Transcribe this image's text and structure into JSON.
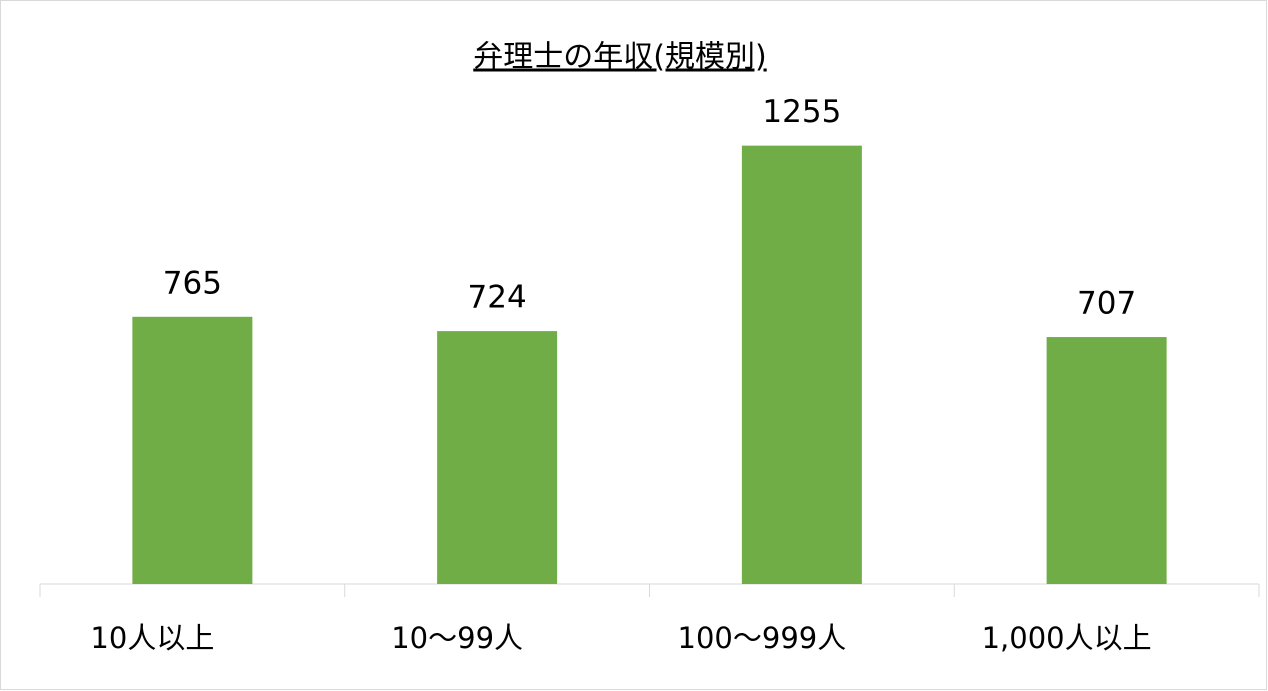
{
  "chart_data": {
    "type": "bar",
    "title": "弁理士の年収(規模別)",
    "categories": [
      "10人以上",
      "10〜99人",
      "100〜999人",
      "1,000人以上"
    ],
    "values": [
      765,
      724,
      1255,
      707
    ],
    "color": "#70ad47",
    "ylim": [
      0,
      1400
    ]
  }
}
